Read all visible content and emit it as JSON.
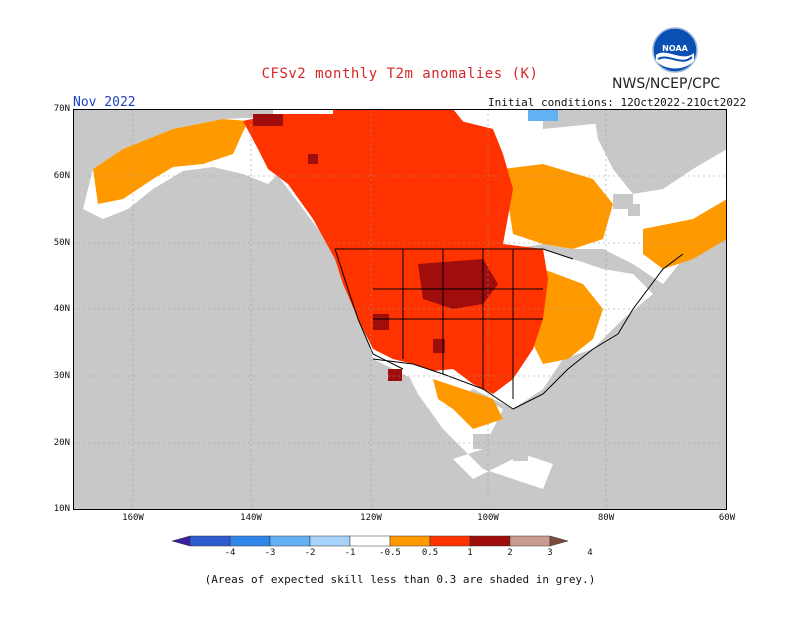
{
  "title": "CFSv2 monthly T2m anomalies (K)",
  "agency": "NWS/NCEP/CPC",
  "logo_text": "NOAA",
  "month": "Nov 2022",
  "initial_conditions": "Initial conditions: 12Oct2022-21Oct2022",
  "footnote": "(Areas of expected skill less than 0.3 are shaded in grey.)",
  "y_labels": [
    "70N",
    "60N",
    "50N",
    "40N",
    "30N",
    "20N",
    "10N"
  ],
  "x_labels": [
    "160W",
    "140W",
    "120W",
    "100W",
    "80W",
    "60W"
  ],
  "colorbar": {
    "labels": [
      "-4",
      "-3",
      "-2",
      "-1",
      "-0.5",
      "0.5",
      "1",
      "2",
      "3",
      "4"
    ],
    "colors": [
      "#3a1f9e",
      "#2f5bd0",
      "#2f86e8",
      "#63b1f5",
      "#a7d3fb",
      "#ffffff",
      "#ff9900",
      "#ff3300",
      "#a00d0d",
      "#c79b8e",
      "#7a4a3a"
    ]
  },
  "map_colors": {
    "ocean": "#c8c8c8",
    "grey_land": "#c8c8c8",
    "neutral": "#ffffff",
    "c0_5_1": "#ff9900",
    "c1_2": "#ff3300",
    "c2_3": "#a00d0d",
    "neg": "#63b1f5"
  }
}
